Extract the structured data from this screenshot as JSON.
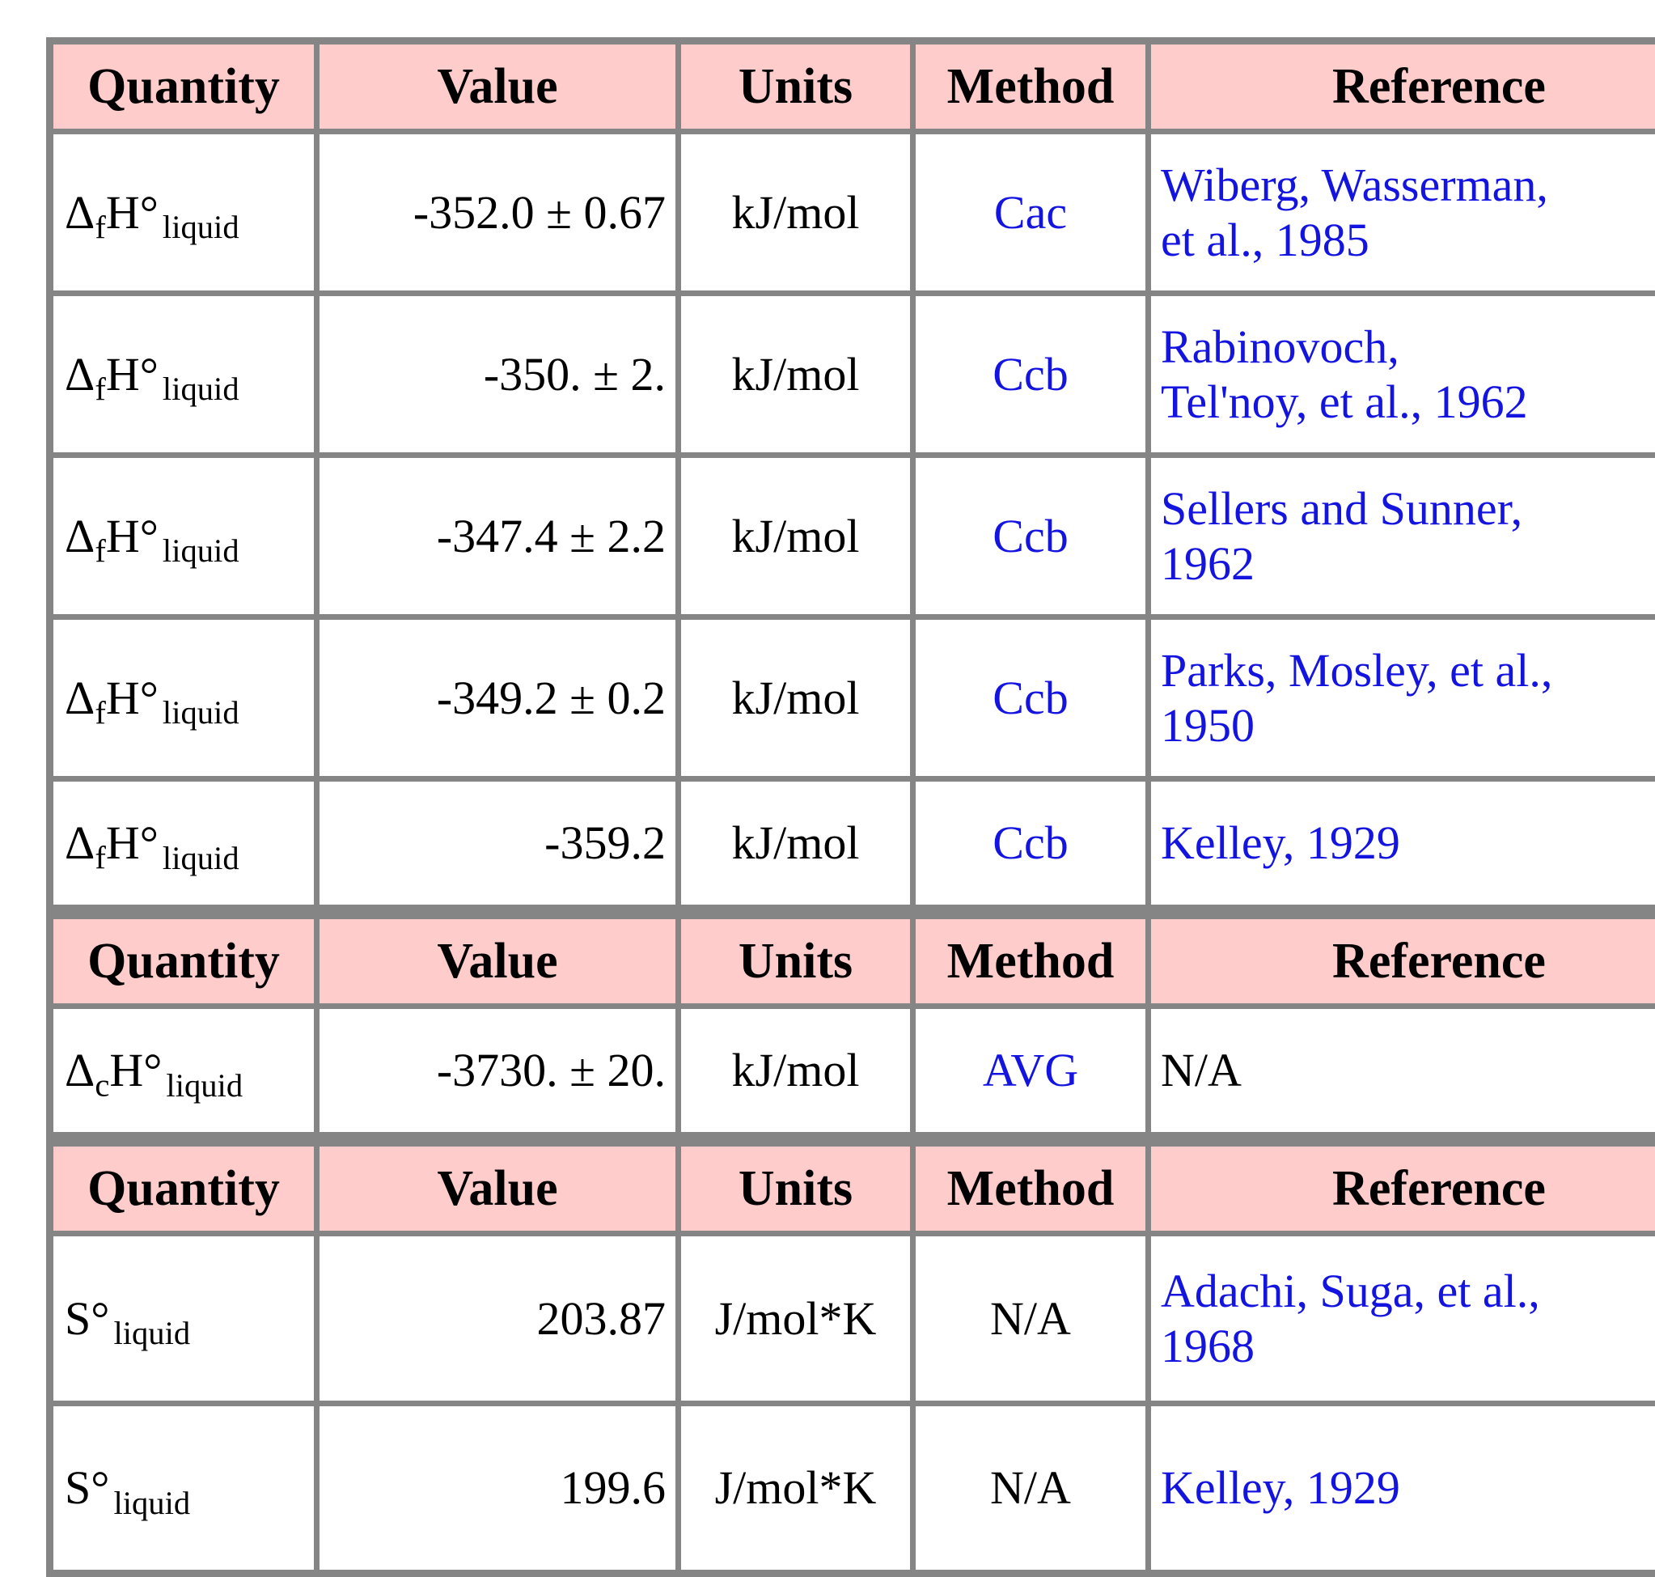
{
  "colors": {
    "header_bg": "#ffcccc",
    "border_gray": "#858585",
    "link_blue": "#1414e0",
    "text_black": "#000000"
  },
  "headers": {
    "quantity": "Quantity",
    "value": "Value",
    "units": "Units",
    "method": "Method",
    "reference": "Reference"
  },
  "tables": [
    {
      "name": "enthalpy-of-formation-liquid",
      "rows": [
        {
          "q": {
            "head": "Δ",
            "sub": "f",
            "body": "H°",
            "cond": "liquid"
          },
          "value": "-352.0 ± 0.67",
          "units": "kJ/mol",
          "method": "Cac",
          "reference": "Wiberg, Wasserman,\net al., 1985"
        },
        {
          "q": {
            "head": "Δ",
            "sub": "f",
            "body": "H°",
            "cond": "liquid"
          },
          "value": "-350. ± 2.",
          "units": "kJ/mol",
          "method": "Ccb",
          "reference": "Rabinovoch,\nTel'noy, et al., 1962"
        },
        {
          "q": {
            "head": "Δ",
            "sub": "f",
            "body": "H°",
            "cond": "liquid"
          },
          "value": "-347.4 ± 2.2",
          "units": "kJ/mol",
          "method": "Ccb",
          "reference": "Sellers and Sunner,\n1962"
        },
        {
          "q": {
            "head": "Δ",
            "sub": "f",
            "body": "H°",
            "cond": "liquid"
          },
          "value": "-349.2 ± 0.2",
          "units": "kJ/mol",
          "method": "Ccb",
          "reference": "Parks, Mosley, et al.,\n1950"
        },
        {
          "q": {
            "head": "Δ",
            "sub": "f",
            "body": "H°",
            "cond": "liquid"
          },
          "value": "-359.2",
          "units": "kJ/mol",
          "method": "Ccb",
          "reference": "Kelley, 1929"
        }
      ]
    },
    {
      "name": "enthalpy-of-combustion-liquid",
      "rows": [
        {
          "q": {
            "head": "Δ",
            "sub": "c",
            "body": "H°",
            "cond": "liquid"
          },
          "value": "-3730. ± 20.",
          "units": "kJ/mol",
          "method": "AVG",
          "reference": "N/A"
        }
      ]
    },
    {
      "name": "entropy-liquid",
      "rows": [
        {
          "q": {
            "head": "S°",
            "sub": "",
            "body": "",
            "cond": "liquid"
          },
          "value": "203.87",
          "units": "J/mol*K",
          "method": "N/A",
          "reference": "Adachi, Suga, et al.,\n1968"
        },
        {
          "q": {
            "head": "S°",
            "sub": "",
            "body": "",
            "cond": "liquid"
          },
          "value": "199.6",
          "units": "J/mol*K",
          "method": "N/A",
          "reference": "Kelley, 1929"
        }
      ]
    }
  ]
}
